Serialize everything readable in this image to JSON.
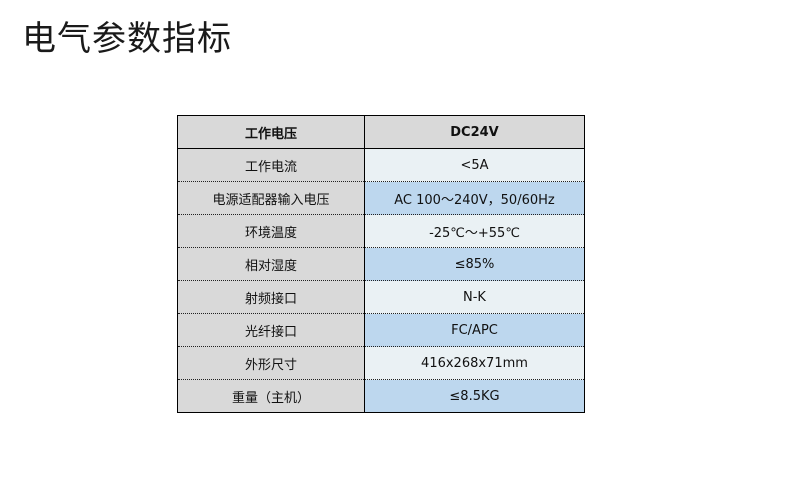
{
  "title": "电气参数指标",
  "colors": {
    "label_bg": "#d9d9d9",
    "value_light": "#eaf1f4",
    "value_dark": "#bdd7ee"
  },
  "table": {
    "header": {
      "label": "工作电压",
      "value": "DC24V"
    },
    "rows": [
      {
        "label": "工作电流",
        "value": "<5A"
      },
      {
        "label": "电源适配器输入电压",
        "value": "AC 100～240V，50/60Hz"
      },
      {
        "label": "环境温度",
        "value": "-25℃～+55℃"
      },
      {
        "label": "相对湿度",
        "value": "≤85%"
      },
      {
        "label": "射频接口",
        "value": "N-K"
      },
      {
        "label": "光纤接口",
        "value": "FC/APC"
      },
      {
        "label": "外形尺寸",
        "value": "416x268x71mm"
      },
      {
        "label": "重量（主机）",
        "value": "≤8.5KG"
      }
    ]
  }
}
